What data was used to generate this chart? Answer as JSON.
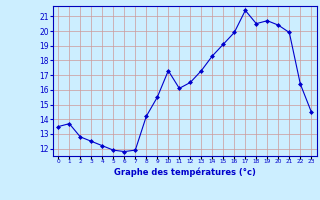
{
  "hours": [
    0,
    1,
    2,
    3,
    4,
    5,
    6,
    7,
    8,
    9,
    10,
    11,
    12,
    13,
    14,
    15,
    16,
    17,
    18,
    19,
    20,
    21,
    22,
    23
  ],
  "temperatures": [
    13.5,
    13.7,
    12.8,
    12.5,
    12.2,
    11.9,
    11.8,
    11.9,
    14.2,
    15.5,
    17.3,
    16.1,
    16.5,
    17.3,
    18.3,
    19.1,
    19.9,
    21.4,
    20.5,
    20.7,
    20.4,
    19.9,
    16.4,
    14.5
  ],
  "line_color": "#0000cc",
  "marker_color": "#0000cc",
  "bg_color": "#cceeff",
  "grid_color": "#cc9999",
  "xlabel": "Graphe des températures (°c)",
  "xlabel_color": "#0000cc",
  "tick_color": "#0000cc",
  "ylim": [
    11.5,
    21.7
  ],
  "yticks": [
    12,
    13,
    14,
    15,
    16,
    17,
    18,
    19,
    20,
    21
  ],
  "spine_color": "#0000bb",
  "fig_bg": "#cceeff",
  "xlim": [
    -0.5,
    23.5
  ]
}
